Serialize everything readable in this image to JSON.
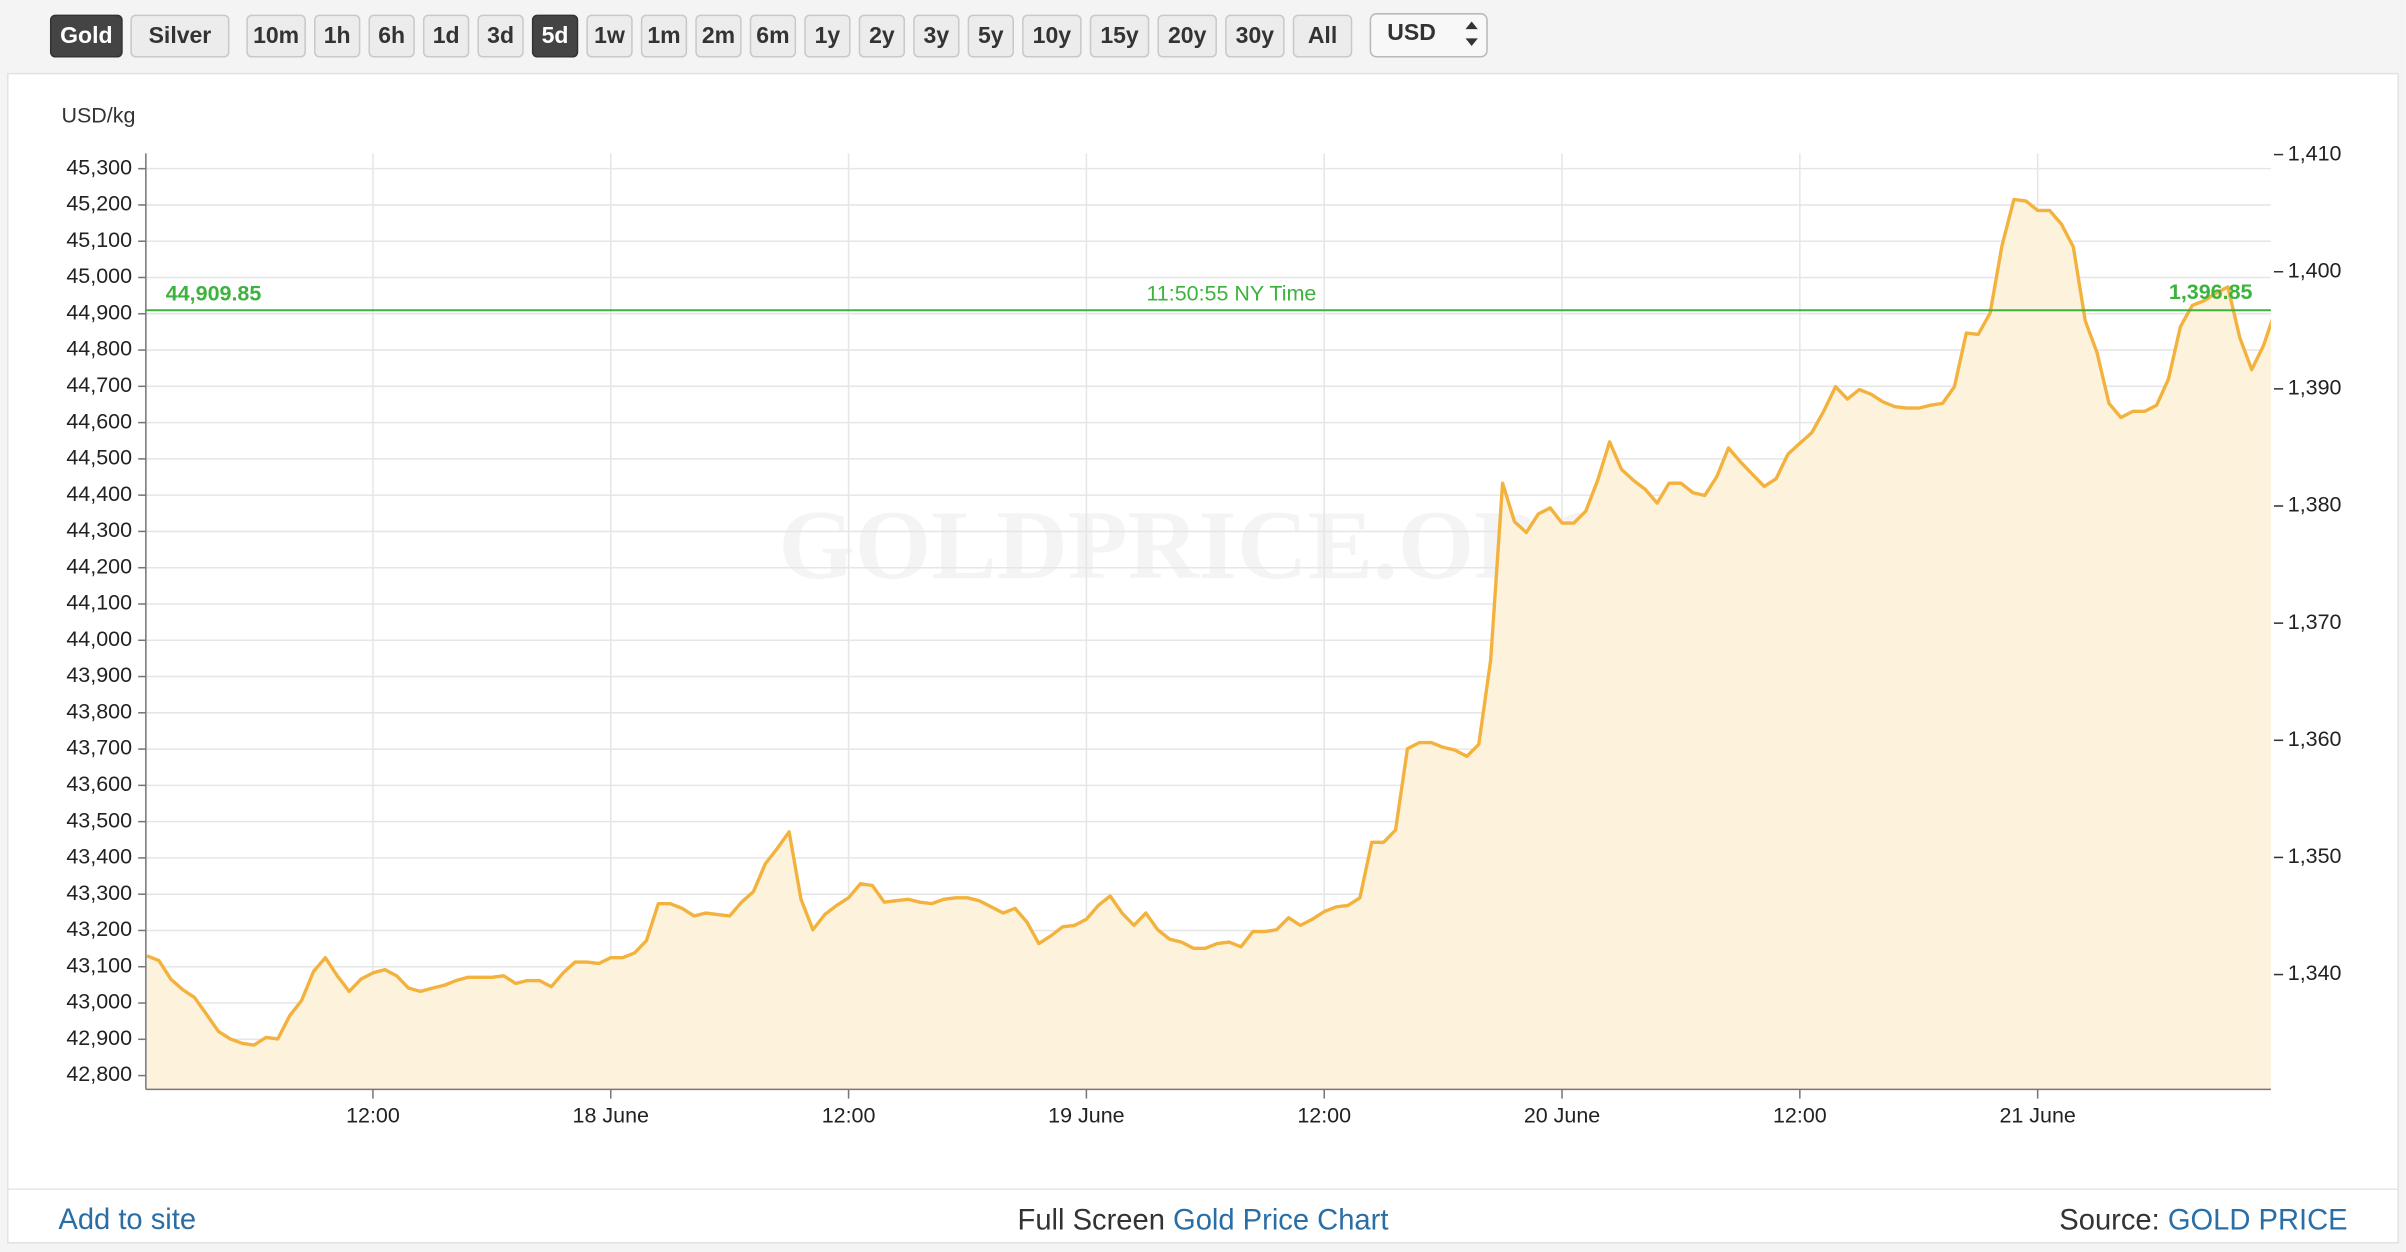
{
  "toolbar": {
    "metal_buttons": [
      "Gold",
      "Silver"
    ],
    "active_metal": 0,
    "range_buttons": [
      "10m",
      "1h",
      "6h",
      "1d",
      "3d",
      "5d",
      "1w",
      "1m",
      "2m",
      "6m",
      "1y",
      "2y",
      "3y",
      "5y",
      "10y",
      "15y",
      "20y",
      "30y",
      "All"
    ],
    "active_range": 5,
    "currency": "USD"
  },
  "chart_data": {
    "type": "line",
    "y_axis_title": "USD/kg",
    "watermark": "GOLDPRICE.ORG",
    "color": "#f3b23d",
    "fill": "#fdf2dc",
    "grid": true,
    "categories": [
      null,
      null,
      null,
      null,
      null,
      null,
      null,
      null,
      null,
      null,
      null,
      null,
      null,
      null,
      null,
      null,
      null,
      null,
      null,
      "12:00",
      null,
      null,
      null,
      null,
      null,
      null,
      null,
      null,
      null,
      null,
      null,
      null,
      null,
      null,
      null,
      null,
      null,
      null,
      null,
      "18 June",
      null,
      null,
      null,
      null,
      null,
      null,
      null,
      null,
      null,
      null,
      null,
      null,
      null,
      null,
      null,
      null,
      null,
      null,
      null,
      "12:00",
      null,
      null,
      null,
      null,
      null,
      null,
      null,
      null,
      null,
      null,
      null,
      null,
      null,
      null,
      null,
      null,
      null,
      null,
      null,
      "19 June",
      null,
      null,
      null,
      null,
      null,
      null,
      null,
      null,
      null,
      null,
      null,
      null,
      null,
      null,
      null,
      null,
      null,
      null,
      null,
      "12:00",
      null,
      null,
      null,
      null,
      null,
      null,
      null,
      null,
      null,
      null,
      null,
      null,
      null,
      null,
      null,
      null,
      null,
      null,
      null,
      "20 June",
      null,
      null,
      null,
      null,
      null,
      null,
      null,
      null,
      null,
      null,
      null,
      null,
      null,
      null,
      null,
      null,
      null,
      null,
      null,
      "12:00",
      null,
      null,
      null,
      null,
      null,
      null,
      null,
      null,
      null,
      null,
      null,
      null,
      null,
      null,
      null,
      null,
      null,
      null,
      null,
      "21 June",
      null,
      null,
      null,
      null,
      null,
      null,
      null,
      null,
      null,
      null,
      null,
      null,
      null,
      null,
      null,
      null,
      null,
      null,
      null,
      null
    ],
    "values": [
      43130,
      43117,
      43066,
      43037,
      43015,
      42969,
      42922,
      42901,
      42889,
      42884,
      42905,
      42901,
      42965,
      43007,
      43087,
      43125,
      43075,
      43032,
      43066,
      43083,
      43092,
      43075,
      43041,
      43032,
      43041,
      43049,
      43062,
      43071,
      43071,
      43071,
      43075,
      43054,
      43062,
      43062,
      43045,
      43083,
      43113,
      43113,
      43109,
      43125,
      43125,
      43138,
      43172,
      43274,
      43274,
      43261,
      43240,
      43248,
      43244,
      43240,
      43278,
      43307,
      43384,
      43426,
      43472,
      43286,
      43202,
      43244,
      43269,
      43290,
      43329,
      43324,
      43278,
      43282,
      43286,
      43278,
      43274,
      43286,
      43290,
      43290,
      43282,
      43265,
      43248,
      43261,
      43223,
      43164,
      43185,
      43210,
      43214,
      43231,
      43269,
      43295,
      43248,
      43214,
      43248,
      43202,
      43176,
      43168,
      43151,
      43151,
      43164,
      43168,
      43155,
      43197,
      43197,
      43202,
      43235,
      43214,
      43231,
      43252,
      43265,
      43269,
      43290,
      43443,
      43443,
      43477,
      43701,
      43718,
      43718,
      43705,
      43697,
      43680,
      43713,
      43946,
      44433,
      44327,
      44297,
      44348,
      44365,
      44323,
      44323,
      44356,
      44441,
      44547,
      44471,
      44441,
      44416,
      44378,
      44433,
      44433,
      44407,
      44399,
      44450,
      44530,
      44492,
      44458,
      44424,
      44445,
      44513,
      44543,
      44572,
      44631,
      44699,
      44665,
      44691,
      44678,
      44657,
      44644,
      44640,
      44640,
      44648,
      44653,
      44699,
      44847,
      44843,
      44902,
      45088,
      45215,
      45211,
      45185,
      45185,
      45147,
      45084,
      44881,
      44792,
      44653,
      44614,
      44631,
      44631,
      44648,
      44720,
      44864,
      44923,
      44936,
      44957,
      44974,
      44834,
      44746,
      44813,
      44910
    ],
    "ylim": [
      42762,
      45342
    ],
    "yticks": [
      {
        "value": 42800,
        "label": "42,800"
      },
      {
        "value": 42900,
        "label": "42,900"
      },
      {
        "value": 43000,
        "label": "43,000"
      },
      {
        "value": 43100,
        "label": "43,100"
      },
      {
        "value": 43200,
        "label": "43,200"
      },
      {
        "value": 43300,
        "label": "43,300"
      },
      {
        "value": 43400,
        "label": "43,400"
      },
      {
        "value": 43500,
        "label": "43,500"
      },
      {
        "value": 43600,
        "label": "43,600"
      },
      {
        "value": 43700,
        "label": "43,700"
      },
      {
        "value": 43800,
        "label": "43,800"
      },
      {
        "value": 43900,
        "label": "43,900"
      },
      {
        "value": 44000,
        "label": "44,000"
      },
      {
        "value": 44100,
        "label": "44,100"
      },
      {
        "value": 44200,
        "label": "44,200"
      },
      {
        "value": 44300,
        "label": "44,300"
      },
      {
        "value": 44400,
        "label": "44,400"
      },
      {
        "value": 44500,
        "label": "44,500"
      },
      {
        "value": 44600,
        "label": "44,600"
      },
      {
        "value": 44700,
        "label": "44,700"
      },
      {
        "value": 44800,
        "label": "44,800"
      },
      {
        "value": 44900,
        "label": "44,900"
      },
      {
        "value": 45000,
        "label": "45,000"
      },
      {
        "value": 45100,
        "label": "45,100"
      },
      {
        "value": 45200,
        "label": "45,200"
      },
      {
        "value": 45300,
        "label": "45,300"
      }
    ],
    "y2lim": [
      1330.2,
      1410.1
    ],
    "y2ticks": [
      {
        "value": 1340,
        "label": "1,340"
      },
      {
        "value": 1350,
        "label": "1,350"
      },
      {
        "value": 1360,
        "label": "1,360"
      },
      {
        "value": 1370,
        "label": "1,370"
      },
      {
        "value": 1380,
        "label": "1,380"
      },
      {
        "value": 1390,
        "label": "1,390"
      },
      {
        "value": 1400,
        "label": "1,400"
      },
      {
        "value": 1410,
        "label": "1,410"
      }
    ],
    "current_price": {
      "value": 44909.85,
      "label": "44,909.85",
      "time": "11:50:55 NY Time",
      "y2": {
        "value": 1396.85,
        "label": "1,396.85"
      },
      "color": "#3cb33c"
    }
  },
  "footer": {
    "left": "Add to site",
    "center_prefix": "Full Screen",
    "center_link": "Gold Price Chart",
    "right_prefix": "Source:",
    "right_link": "GOLD PRICE"
  }
}
